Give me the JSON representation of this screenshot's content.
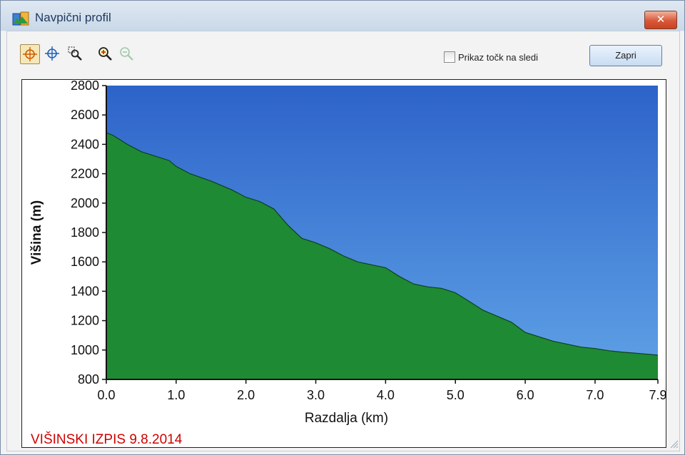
{
  "window": {
    "title": "Navpični profil",
    "close_glyph": "✕"
  },
  "toolbar": {
    "tools": [
      {
        "name": "select-point-tool",
        "icon": "crosshair-icon"
      },
      {
        "name": "move-tool",
        "icon": "move-crosshair-icon"
      },
      {
        "name": "zoom-rect-tool",
        "icon": "zoom-rectangle-icon"
      },
      {
        "name": "zoom-in-tool",
        "icon": "zoom-in-icon"
      },
      {
        "name": "zoom-out-tool",
        "icon": "zoom-out-icon"
      }
    ],
    "show_points_label": "Prikaz točk na sledi",
    "show_points_checked": false,
    "close_button_label": "Zapri"
  },
  "chart_data": {
    "type": "area",
    "xlabel": "Razdalja   (km)",
    "ylabel": "Višina (m)",
    "xlim": [
      0,
      7.9
    ],
    "ylim": [
      800,
      2800
    ],
    "x_ticks": [
      "0.0",
      "1.0",
      "2.0",
      "3.0",
      "4.0",
      "5.0",
      "6.0",
      "7.0",
      "7.9"
    ],
    "x_tick_values": [
      0,
      1,
      2,
      3,
      4,
      5,
      6,
      7,
      7.9
    ],
    "y_ticks": [
      "800",
      "1000",
      "1200",
      "1400",
      "1600",
      "1800",
      "2000",
      "2200",
      "2400",
      "2600",
      "2800"
    ],
    "y_tick_values": [
      800,
      1000,
      1200,
      1400,
      1600,
      1800,
      2000,
      2200,
      2400,
      2600,
      2800
    ],
    "colors": {
      "sky": "#2d63c9",
      "sky_light": "#5fa2e6",
      "terrain": "#1f8a34"
    },
    "series": [
      {
        "x": [
          0,
          0.1,
          0.3,
          0.5,
          0.7,
          0.9,
          1.0,
          1.2,
          1.5,
          1.8,
          2.0,
          2.2,
          2.4,
          2.6,
          2.8,
          3.0,
          3.2,
          3.4,
          3.6,
          3.8,
          4.0,
          4.2,
          4.4,
          4.6,
          4.8,
          5.0,
          5.2,
          5.4,
          5.6,
          5.8,
          6.0,
          6.2,
          6.4,
          6.6,
          6.8,
          7.0,
          7.2,
          7.4,
          7.6,
          7.9
        ],
        "y": [
          2480,
          2460,
          2400,
          2350,
          2320,
          2290,
          2250,
          2200,
          2150,
          2090,
          2040,
          2010,
          1960,
          1850,
          1760,
          1730,
          1690,
          1640,
          1600,
          1580,
          1560,
          1500,
          1450,
          1430,
          1420,
          1390,
          1330,
          1270,
          1230,
          1190,
          1120,
          1090,
          1060,
          1040,
          1020,
          1010,
          995,
          985,
          978,
          965
        ]
      }
    ]
  },
  "footer_note": "VIŠINSKI IZPIS 9.8.2014"
}
